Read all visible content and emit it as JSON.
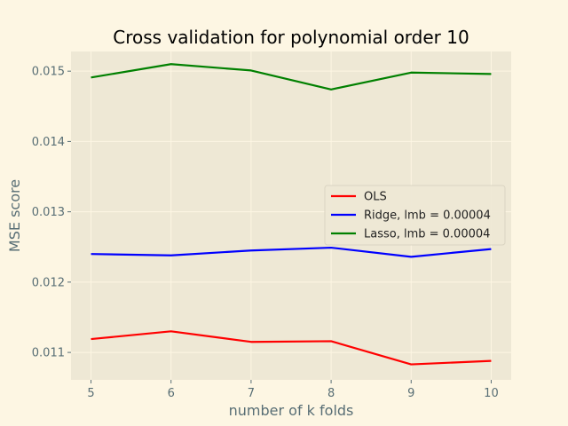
{
  "chart_data": {
    "type": "line",
    "title": "Cross validation for polynomial order 10",
    "xlabel": "number of k folds",
    "ylabel": "MSE score",
    "x": [
      5,
      6,
      7,
      8,
      9,
      10
    ],
    "xlim": [
      4.75,
      10.25
    ],
    "ylim": [
      0.01061,
      0.01528
    ],
    "xticks": [
      5,
      6,
      7,
      8,
      9,
      10
    ],
    "yticks": [
      0.011,
      0.012,
      0.013,
      0.014,
      0.015
    ],
    "ytick_labels": [
      "0.011",
      "0.012",
      "0.013",
      "0.014",
      "0.015"
    ],
    "grid": true,
    "legend_position": "center-right",
    "series": [
      {
        "name": "OLS",
        "color": "#ff0000",
        "values": [
          0.01119,
          0.0113,
          0.01115,
          0.01116,
          0.01083,
          0.01088
        ]
      },
      {
        "name": "Ridge, lmb = 0.00004",
        "color": "#0000ff",
        "values": [
          0.0124,
          0.01238,
          0.01245,
          0.01249,
          0.01236,
          0.01247
        ]
      },
      {
        "name": "Lasso, lmb = 0.00004",
        "color": "#008000",
        "values": [
          0.01491,
          0.0151,
          0.01501,
          0.01474,
          0.01498,
          0.01496
        ]
      }
    ]
  }
}
